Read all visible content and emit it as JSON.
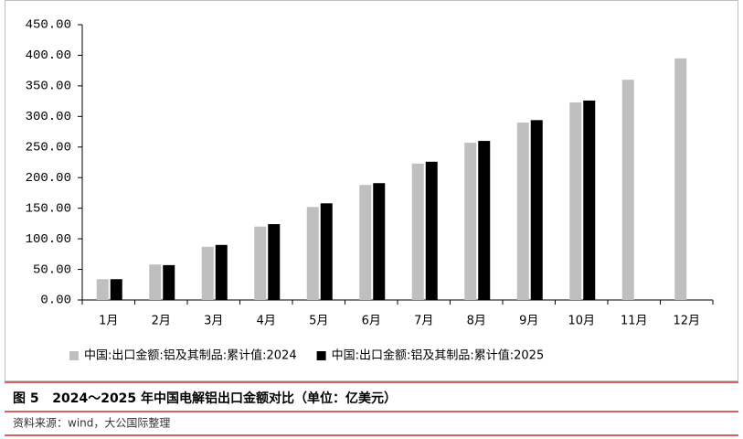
{
  "chart_data": {
    "type": "bar",
    "title": "图 5   2024～2025 年中国电解铝出口金额对比（单位：亿美元）",
    "source": "资料来源：wind，大公国际整理",
    "categories": [
      "1月",
      "2月",
      "3月",
      "4月",
      "5月",
      "6月",
      "7月",
      "8月",
      "9月",
      "10月",
      "11月",
      "12月"
    ],
    "series": [
      {
        "name": "中国:出口金额:铝及其制品:累计值:2024",
        "color": "#bfbfbf",
        "values": [
          34,
          58,
          87,
          120,
          152,
          188,
          223,
          257,
          290,
          323,
          360,
          395
        ]
      },
      {
        "name": "中国:出口金额:铝及其制品:累计值:2025",
        "color": "#000000",
        "values": [
          34,
          57,
          90,
          124,
          158,
          191,
          226,
          260,
          294,
          326,
          null,
          null
        ]
      }
    ],
    "ylim": [
      0,
      450
    ],
    "yticks": [
      {
        "value": 0,
        "label": "0.00"
      },
      {
        "value": 50,
        "label": "50.00"
      },
      {
        "value": 100,
        "label": "100.00"
      },
      {
        "value": 150,
        "label": "150.00"
      },
      {
        "value": 200,
        "label": "200.00"
      },
      {
        "value": 250,
        "label": "250.00"
      },
      {
        "value": 300,
        "label": "300.00"
      },
      {
        "value": 350,
        "label": "350.00"
      },
      {
        "value": 400,
        "label": "400.00"
      },
      {
        "value": 450,
        "label": "450.00"
      }
    ],
    "legend": "bottom"
  }
}
